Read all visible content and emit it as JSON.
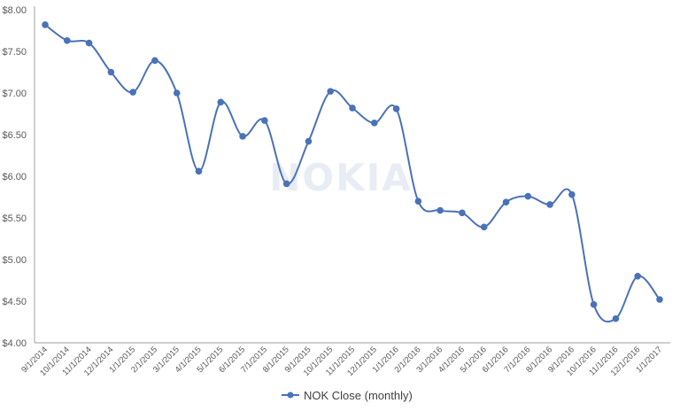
{
  "chart_data": {
    "type": "line",
    "title": "",
    "xlabel": "",
    "ylabel": "",
    "ylim": [
      4.0,
      8.0
    ],
    "y_ticks": [
      "$4.00",
      "$4.50",
      "$5.00",
      "$5.50",
      "$6.00",
      "$6.50",
      "$7.00",
      "$7.50",
      "$8.00"
    ],
    "y_tick_values": [
      4.0,
      4.5,
      5.0,
      5.5,
      6.0,
      6.5,
      7.0,
      7.5,
      8.0
    ],
    "grid": false,
    "smoothed": true,
    "markers": true,
    "legend_position": "bottom",
    "watermark": "NOKIA",
    "categories": [
      "9/1/2014",
      "10/1/2014",
      "11/1/2014",
      "12/1/2014",
      "1/1/2015",
      "2/1/2015",
      "3/1/2015",
      "4/1/2015",
      "5/1/2015",
      "6/1/2015",
      "7/1/2015",
      "8/1/2015",
      "9/1/2015",
      "10/1/2015",
      "11/1/2015",
      "12/1/2015",
      "1/1/2016",
      "2/1/2016",
      "3/1/2016",
      "4/1/2016",
      "5/1/2016",
      "6/1/2016",
      "7/1/2016",
      "8/1/2016",
      "9/1/2016",
      "10/1/2016",
      "11/1/2016",
      "12/1/2016",
      "1/1/2017"
    ],
    "series": [
      {
        "name": "NOK Close (monthly)",
        "color": "#4a72b8",
        "values": [
          7.82,
          7.63,
          7.6,
          7.25,
          7.01,
          7.39,
          7.0,
          6.06,
          6.89,
          6.48,
          6.67,
          5.91,
          6.42,
          7.02,
          6.82,
          6.64,
          6.81,
          5.7,
          5.59,
          5.56,
          5.39,
          5.69,
          5.76,
          5.66,
          5.78,
          4.46,
          4.29,
          4.8,
          4.52
        ]
      }
    ]
  },
  "legend": {
    "label": "NOK Close (monthly)"
  },
  "colors": {
    "series": "#4a72b8",
    "axis": "#bfbfbf",
    "tick_text": "#595959",
    "watermark": "#e8ecf4"
  }
}
